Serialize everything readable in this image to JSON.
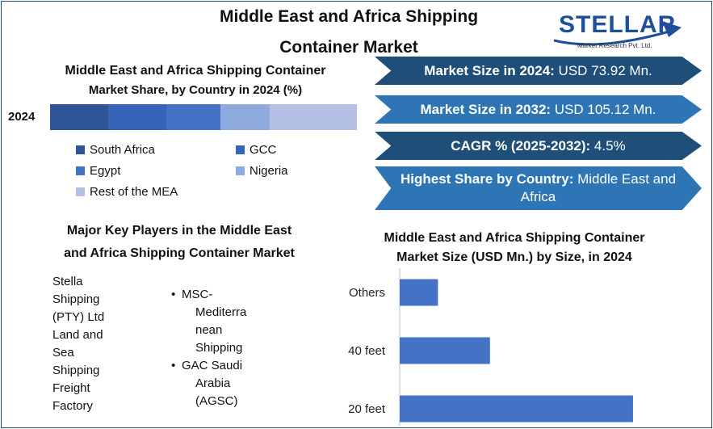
{
  "header": {
    "title_line1": "Middle East and Africa Shipping",
    "title_line2": "Container Market"
  },
  "logo": {
    "name": "STELLAR",
    "tagline": "Market Research Pvt. Ltd."
  },
  "colors": {
    "south_africa": "#2f5597",
    "gcc": "#3564b8",
    "egypt": "#4472c4",
    "nigeria": "#8faadc",
    "rest_mea": "#b4c1e4",
    "arrow_dark": "#1f4e79",
    "arrow_mid": "#2e75b6",
    "bar": "#4472c4"
  },
  "share_section": {
    "title_line1": "Middle East and Africa Shipping Container",
    "title_line2": "Market Share, by Country in 2024 (%)",
    "year": "2024"
  },
  "metrics": [
    {
      "label": "Market Size in 2024:",
      "value": " USD 73.92 Mn."
    },
    {
      "label": "Market Size in 2032:",
      "value": " USD 105.12 Mn."
    },
    {
      "label": "CAGR % (2025-2032):",
      "value": " 4.5%"
    },
    {
      "label": "Highest Share by Country:",
      "value": " Middle East and Africa"
    }
  ],
  "players_section": {
    "title_line1": "Major Key Players in the Middle East",
    "title_line2": "and Africa Shipping Container Market",
    "col1": [
      "Stella",
      "Shipping",
      "(PTY) Ltd",
      "Land and",
      "Sea",
      "Shipping",
      "Freight",
      "Factory"
    ],
    "col2": [
      {
        "lines": [
          "MSC-",
          "Mediterra",
          "nean",
          "Shipping"
        ]
      },
      {
        "lines": [
          "GAC Saudi",
          "Arabia",
          "(AGSC)"
        ]
      }
    ],
    "bullet": "•"
  },
  "chart_data": [
    {
      "type": "bar",
      "orientation": "horizontal-stacked",
      "title": "Middle East and Africa Shipping Container Market Share, by Country in 2024 (%)",
      "categories": [
        "2024"
      ],
      "series": [
        {
          "name": "South Africa",
          "values": [
            19
          ]
        },
        {
          "name": "GCC",
          "values": [
            19
          ]
        },
        {
          "name": "Egypt",
          "values": [
            17.5
          ]
        },
        {
          "name": "Nigeria",
          "values": [
            16
          ]
        },
        {
          "name": "Rest of the MEA",
          "values": [
            28.5
          ]
        }
      ],
      "legend": "bottom"
    },
    {
      "type": "bar",
      "orientation": "horizontal",
      "title": "Middle East and Africa Shipping Container Market Size (USD Mn.) by Size, in 2024",
      "categories": [
        "Others",
        "40 feet",
        "20 feet"
      ],
      "values": [
        5,
        11.8,
        30.5
      ],
      "xlim": [
        0,
        38
      ],
      "grid": false
    }
  ]
}
